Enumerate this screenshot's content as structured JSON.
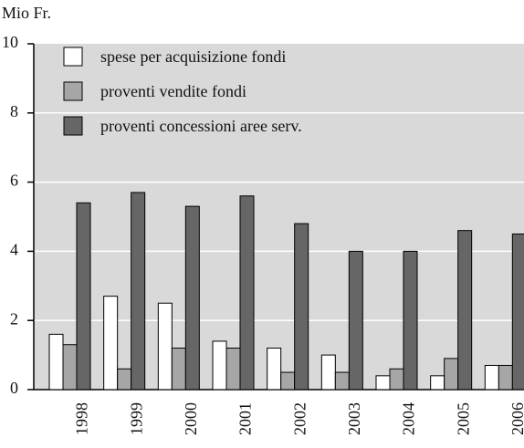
{
  "chart_data": {
    "type": "bar",
    "y_label": "Mio Fr.",
    "categories": [
      "1998",
      "1999",
      "2000",
      "2001",
      "2002",
      "2003",
      "2004",
      "2005",
      "2006"
    ],
    "series": [
      {
        "name": "spese per acquisizione fondi",
        "color": "#ffffff",
        "values": [
          1.6,
          2.7,
          2.5,
          1.4,
          1.2,
          1.0,
          0.4,
          0.4,
          0.7
        ]
      },
      {
        "name": "proventi vendite fondi",
        "color": "#a6a6a6",
        "values": [
          1.3,
          0.6,
          1.2,
          1.2,
          0.5,
          0.5,
          0.6,
          0.9,
          0.7
        ]
      },
      {
        "name": "proventi concessioni aree serv.",
        "color": "#666666",
        "values": [
          5.4,
          5.7,
          5.3,
          5.6,
          4.8,
          4.0,
          4.0,
          4.6,
          4.5
        ]
      }
    ],
    "ylim": [
      0,
      10
    ],
    "yticks": [
      0,
      2,
      4,
      6,
      8,
      10
    ],
    "grid": true,
    "background": "#d9d9d9"
  }
}
